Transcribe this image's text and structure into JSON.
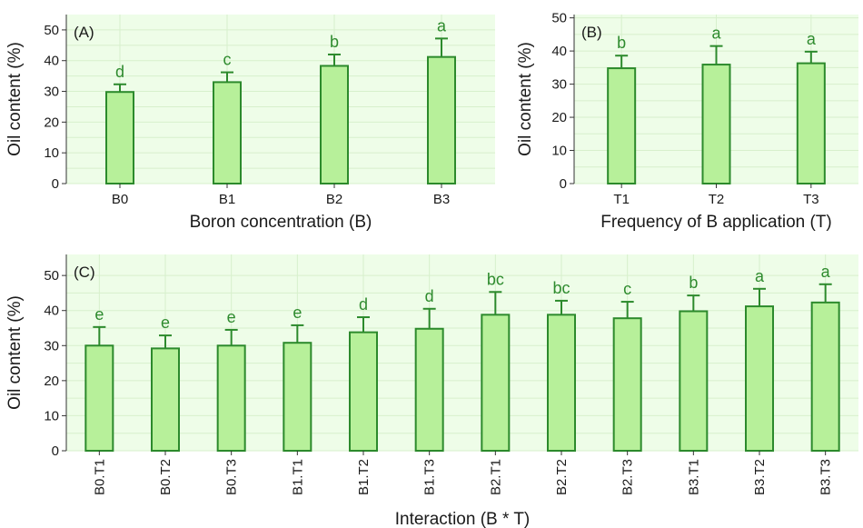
{
  "colors": {
    "panel_bg": "#eefde8",
    "grid": "#d7f0cc",
    "bar_fill": "#b7f09a",
    "bar_stroke": "#2c8a2c",
    "letter": "#2e8b2e"
  },
  "chart_data": [
    {
      "id": "A",
      "type": "bar",
      "panel_label": "(A)",
      "xlabel": "Boron concentration (B)",
      "ylabel": "Oil content (%)",
      "ylim": [
        0,
        55
      ],
      "yticks": [
        0,
        10,
        20,
        30,
        40,
        50
      ],
      "grid": true,
      "categories": [
        "B0",
        "B1",
        "B2",
        "B3"
      ],
      "values": [
        29.8,
        33.0,
        38.3,
        41.2
      ],
      "errors": [
        2.5,
        3.2,
        3.7,
        6.0
      ],
      "letters": [
        "d",
        "c",
        "b",
        "a"
      ]
    },
    {
      "id": "B",
      "type": "bar",
      "panel_label": "(B)",
      "xlabel": "Frequency of B application (T)",
      "ylabel": "Oil content (%)",
      "ylim": [
        0,
        51
      ],
      "yticks": [
        0,
        10,
        20,
        30,
        40,
        50
      ],
      "grid": true,
      "categories": [
        "T1",
        "T2",
        "T3"
      ],
      "values": [
        34.8,
        35.9,
        36.3
      ],
      "errors": [
        3.8,
        5.6,
        3.5
      ],
      "letters": [
        "b",
        "a",
        "a"
      ]
    },
    {
      "id": "C",
      "type": "bar",
      "panel_label": "(C)",
      "xlabel": "Interaction (B * T)",
      "ylabel": "Oil content (%)",
      "ylim": [
        0,
        56
      ],
      "yticks": [
        0,
        10,
        20,
        30,
        40,
        50
      ],
      "grid": true,
      "categories": [
        "B0.T1",
        "B0.T2",
        "B0.T3",
        "B1.T1",
        "B1.T2",
        "B1.T3",
        "B2.T1",
        "B2.T2",
        "B2.T3",
        "B3.T1",
        "B3.T2",
        "B3.T3"
      ],
      "values": [
        30.0,
        29.2,
        30.0,
        30.8,
        33.8,
        34.8,
        38.8,
        38.8,
        37.8,
        39.8,
        41.2,
        42.3
      ],
      "errors": [
        5.3,
        3.7,
        4.5,
        5.0,
        4.3,
        5.7,
        6.5,
        4.0,
        4.7,
        4.5,
        5.0,
        5.2
      ],
      "letters": [
        "e",
        "e",
        "e",
        "e",
        "d",
        "d",
        "bc",
        "bc",
        "c",
        "b",
        "a",
        "a"
      ]
    }
  ]
}
